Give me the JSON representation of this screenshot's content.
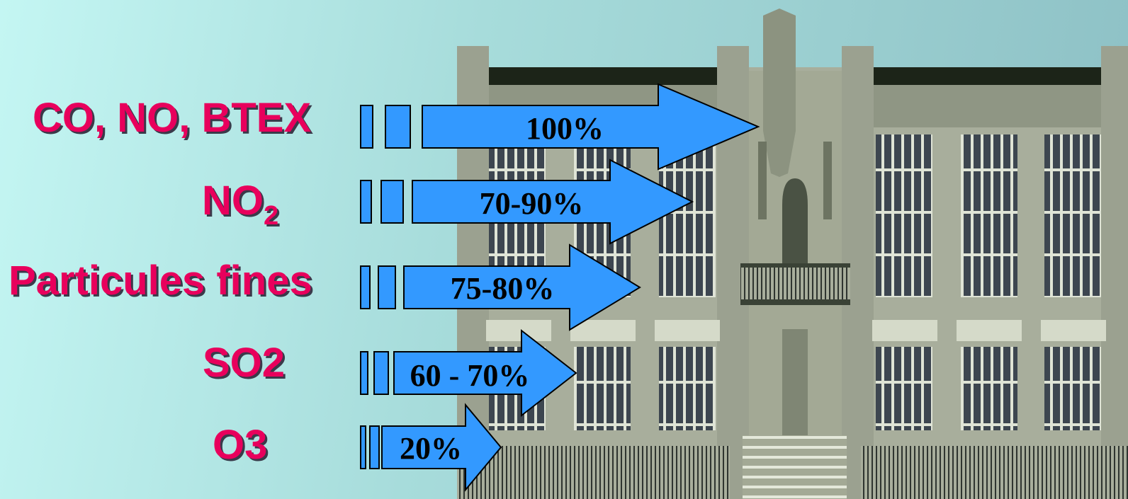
{
  "rows": [
    {
      "pollutant": "CO, NO, BTEX",
      "subscript": "",
      "reduction": "100%"
    },
    {
      "pollutant": "NO",
      "subscript": "2",
      "reduction": "70-90%"
    },
    {
      "pollutant": "Particules fines",
      "subscript": "",
      "reduction": "75-80%"
    },
    {
      "pollutant": "SO2",
      "subscript": "",
      "reduction": "60 - 70%"
    },
    {
      "pollutant": "O3",
      "subscript": "",
      "reduction": "20%"
    }
  ],
  "colors": {
    "label": "#e8005c",
    "label_shadow": "#3a3a4a",
    "arrow_fill": "#3399ff",
    "arrow_stroke": "#000000",
    "building_wall": "#a8ae9c",
    "window": "#3d4650"
  }
}
